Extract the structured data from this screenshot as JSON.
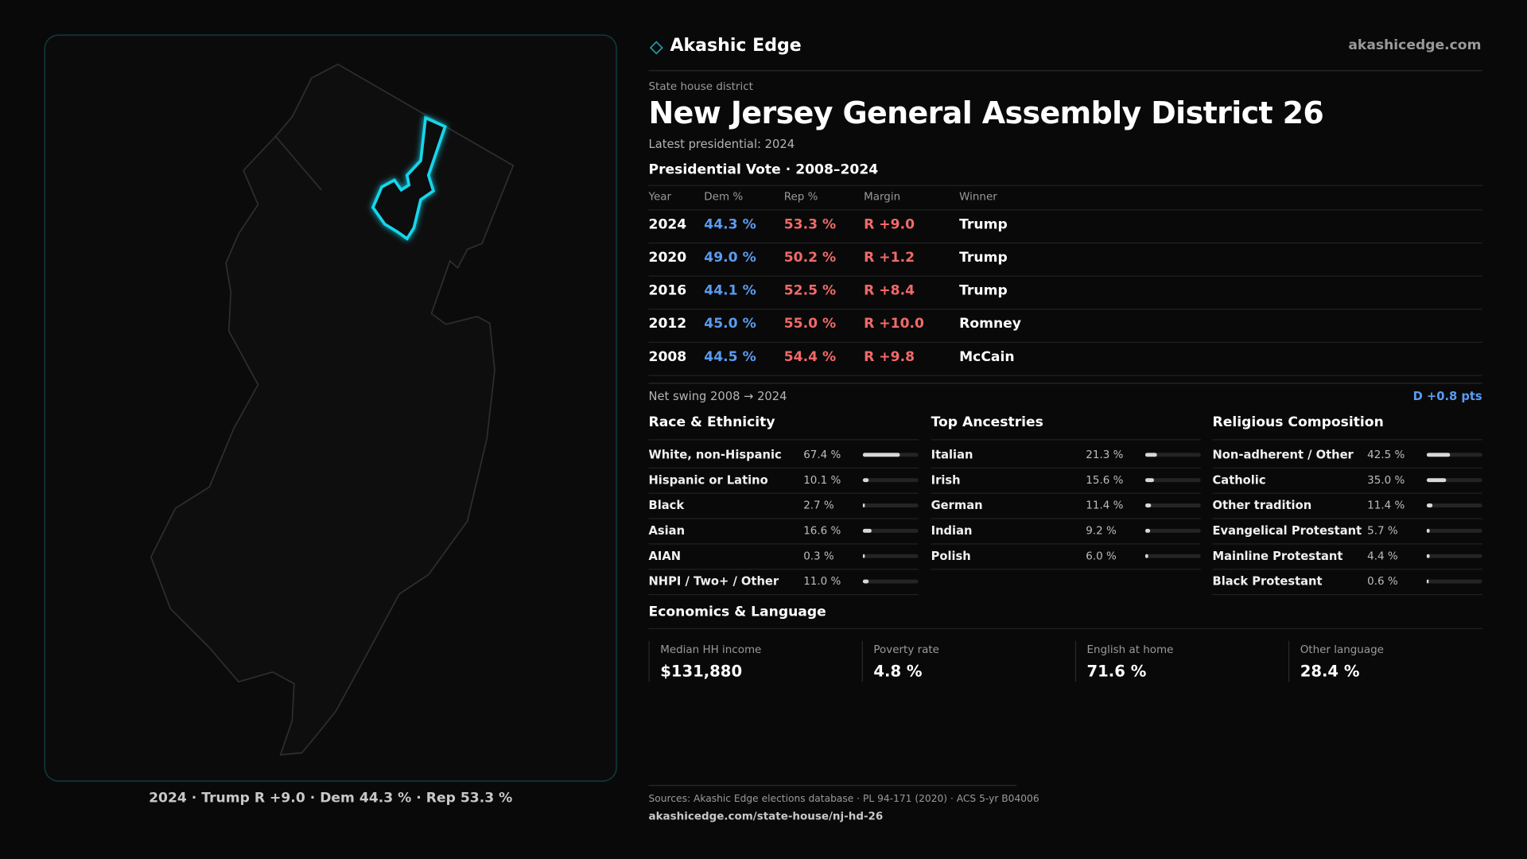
{
  "header": {
    "brand": "Akashic Edge",
    "site": "akashicedge.com"
  },
  "kicker": "State house district",
  "title": "New Jersey General Assembly District 26",
  "latest": "Latest presidential: 2024",
  "vote": {
    "title": "Presidential Vote · 2008–2024",
    "columns": [
      "Year",
      "Dem %",
      "Rep %",
      "Margin",
      "Winner"
    ],
    "rows": [
      [
        "2024",
        "44.3 %",
        "53.3 %",
        "R +9.0",
        "Trump"
      ],
      [
        "2020",
        "49.0 %",
        "50.2 %",
        "R +1.2",
        "Trump"
      ],
      [
        "2016",
        "44.1 %",
        "52.5 %",
        "R +8.4",
        "Trump"
      ],
      [
        "2012",
        "45.0 %",
        "55.0 %",
        "R +10.0",
        "Romney"
      ],
      [
        "2008",
        "44.5 %",
        "54.4 %",
        "R +9.8",
        "McCain"
      ]
    ]
  },
  "swing": {
    "label": "Net swing 2008 → 2024",
    "value": "D +0.8 pts"
  },
  "panels": [
    {
      "title": "Race & Ethnicity",
      "rows": [
        [
          "White, non-Hispanic",
          "67.4 %"
        ],
        [
          "Hispanic or Latino",
          "10.1 %"
        ],
        [
          "Black",
          "2.7 %"
        ],
        [
          "Asian",
          "16.6 %"
        ],
        [
          "AIAN",
          "0.3 %"
        ],
        [
          "NHPI / Two+ / Other",
          "11.0 %"
        ]
      ]
    },
    {
      "title": "Top Ancestries",
      "rows": [
        [
          "Italian",
          "21.3 %"
        ],
        [
          "Irish",
          "15.6 %"
        ],
        [
          "German",
          "11.4 %"
        ],
        [
          "Indian",
          "9.2 %"
        ],
        [
          "Polish",
          "6.0 %"
        ]
      ]
    },
    {
      "title": "Religious Composition",
      "rows": [
        [
          "Non-adherent / Other",
          "42.5 %"
        ],
        [
          "Catholic",
          "35.0 %"
        ],
        [
          "Other tradition",
          "11.4 %"
        ],
        [
          "Evangelical Protestant",
          "5.7 %"
        ],
        [
          "Mainline Protestant",
          "4.4 %"
        ],
        [
          "Black Protestant",
          "0.6 %"
        ]
      ]
    }
  ],
  "econ": {
    "title": "Economics & Language",
    "stats": [
      {
        "label": "Median HH income",
        "value": "$131,880"
      },
      {
        "label": "Poverty rate",
        "value": "4.8 %"
      },
      {
        "label": "English at home",
        "value": "71.6 %"
      },
      {
        "label": "Other language",
        "value": "28.4 %"
      }
    ]
  },
  "map_caption": "2024 · Trump R +9.0 · Dem 44.3 % · Rep 53.3 %",
  "footer": {
    "sources": "Sources: Akashic Edge elections database · PL 94-171 (2020) · ACS 5-yr B04006",
    "url": "akashicedge.com/state-house/nj-hd-26"
  }
}
